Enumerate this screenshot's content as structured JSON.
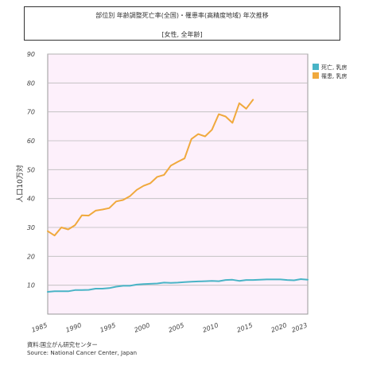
{
  "title": {
    "line1": "部位別 年齢調整死亡率(全国)・罹患率(高精度地域) 年次推移",
    "line2": "[女性, 全年齢]"
  },
  "source": {
    "line1": "資料:国立がん研究センター",
    "line2": "Source: National Cancer Center, Japan"
  },
  "chart_data": {
    "type": "line",
    "ylabel": "人口10万対",
    "xlabel": "",
    "ylim": [
      0,
      90
    ],
    "xlim": [
      1985,
      2023
    ],
    "grid": true,
    "legend": "top-right",
    "yticks": [
      "90",
      "80",
      "70",
      "60",
      "50",
      "40",
      "30",
      "20",
      "10"
    ],
    "xticks": [
      "1985",
      "1990",
      "1995",
      "2000",
      "2005",
      "2010",
      "2015",
      "2020",
      "2023"
    ],
    "series": [
      {
        "name": "死亡, 乳房",
        "color": "#49b4c6",
        "x": [
          1985,
          1986,
          1987,
          1988,
          1989,
          1990,
          1991,
          1992,
          1993,
          1994,
          1995,
          1996,
          1997,
          1998,
          1999,
          2000,
          2001,
          2002,
          2003,
          2004,
          2005,
          2006,
          2007,
          2008,
          2009,
          2010,
          2011,
          2012,
          2013,
          2014,
          2015,
          2016,
          2017,
          2018,
          2019,
          2020,
          2021,
          2022,
          2023
        ],
        "values": [
          7.7,
          7.9,
          7.9,
          7.9,
          8.3,
          8.3,
          8.4,
          8.8,
          8.8,
          9.0,
          9.5,
          9.8,
          9.8,
          10.2,
          10.4,
          10.5,
          10.6,
          10.9,
          10.8,
          10.9,
          11.1,
          11.2,
          11.3,
          11.4,
          11.5,
          11.4,
          11.8,
          11.9,
          11.5,
          11.8,
          11.8,
          11.9,
          12.0,
          12.0,
          12.0,
          11.8,
          11.7,
          12.1,
          11.9
        ]
      },
      {
        "name": "罹患, 乳房",
        "color": "#f0a93d",
        "x": [
          1985,
          1986,
          1987,
          1988,
          1989,
          1990,
          1991,
          1992,
          1993,
          1994,
          1995,
          1996,
          1997,
          1998,
          1999,
          2000,
          2001,
          2002,
          2003,
          2004,
          2005,
          2006,
          2007,
          2008,
          2009,
          2010,
          2011,
          2012,
          2013,
          2014,
          2015
        ],
        "values": [
          28.7,
          27.2,
          30.0,
          29.3,
          30.8,
          34.2,
          34.1,
          35.8,
          36.2,
          36.7,
          39.0,
          39.5,
          40.8,
          43.0,
          44.4,
          45.3,
          47.5,
          48.2,
          51.4,
          52.7,
          53.9,
          60.6,
          62.3,
          61.5,
          63.8,
          69.2,
          68.4,
          66.2,
          73.0,
          71.1,
          74.2
        ]
      }
    ]
  }
}
